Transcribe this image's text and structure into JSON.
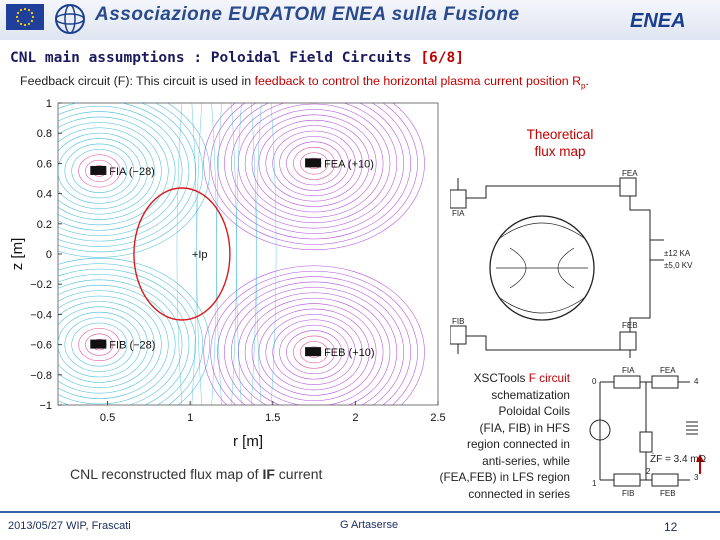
{
  "header": {
    "association_title": "Associazione EURATOM ENEA sulla Fusione",
    "enea_logo_text": "ENEA",
    "eu_flag_color": "#1f3f9a",
    "eu_star_color": "#ffd400"
  },
  "slide": {
    "title_main": "CNL main assumptions : Poloidal Field Circuits",
    "title_num": "[6/8]",
    "subtitle_a": "Feedback circuit (F): This circuit is used in ",
    "subtitle_b": "feedback to control the horizontal plasma current position R",
    "subtitle_sub": "p",
    "subtitle_c": ".",
    "theory_label_1": "Theoretical",
    "theory_label_2": "flux map",
    "caption_a": "CNL reconstructed flux map of ",
    "caption_b": "IF",
    "caption_c": " current",
    "xsc_1": "XSCTools ",
    "xsc_2": "F circuit",
    "xsc_3": "schematization",
    "xsc_4": "Poloidal Coils",
    "xsc_5": "(FIA, FIB) in HFS",
    "xsc_6": "region connected in",
    "xsc_7": "anti-series, while",
    "xsc_8": "(FEA,FEB) in LFS region",
    "xsc_9": "connected in series"
  },
  "footer": {
    "date_place": "2013/05/27   WIP, Frascati",
    "author": "G Artaserse",
    "page": "12"
  },
  "chart_data": {
    "type": "contour",
    "xlabel": "r [m]",
    "ylabel": "z [m]",
    "xlim": [
      0.2,
      2.5
    ],
    "ylim": [
      -1,
      1
    ],
    "xticks": [
      "0.5",
      "1",
      "1.5",
      "2",
      "2.5"
    ],
    "yticks": [
      "1",
      "0.8",
      "0.6",
      "0.4",
      "0.2",
      "0",
      "−0.2",
      "−0.4",
      "−0.6",
      "−0.8",
      "−1"
    ],
    "coil_labels": [
      {
        "name": "FIA (−28)",
        "r": 0.45,
        "z": 0.55
      },
      {
        "name": "FEA (+10)",
        "r": 1.75,
        "z": 0.6
      },
      {
        "name": "FIB (−28)",
        "r": 0.45,
        "z": -0.6
      },
      {
        "name": "FEB (+10)",
        "r": 1.75,
        "z": -0.65
      }
    ],
    "plasma_label": "+Ip",
    "contour_colors": [
      "#27b0d6",
      "#a52fd9",
      "#d62a86"
    ],
    "plasma_boundary_color": "#d81b1b"
  },
  "diagram": {
    "fia": "FIA",
    "fea": "FEA",
    "fib": "FIB",
    "feb": "FEB",
    "voltage_1": "±12 KA",
    "voltage_2": "±5,0 KV",
    "bottom_formula": "ŻF = 3.4 mΩ",
    "small_fia": "FIA",
    "small_fea": "FEA",
    "small_fib": "FIB",
    "small_feb": "FEB",
    "node_0": "0",
    "node_1": "1",
    "node_2": "2",
    "node_3": "3",
    "node_4": "4"
  }
}
